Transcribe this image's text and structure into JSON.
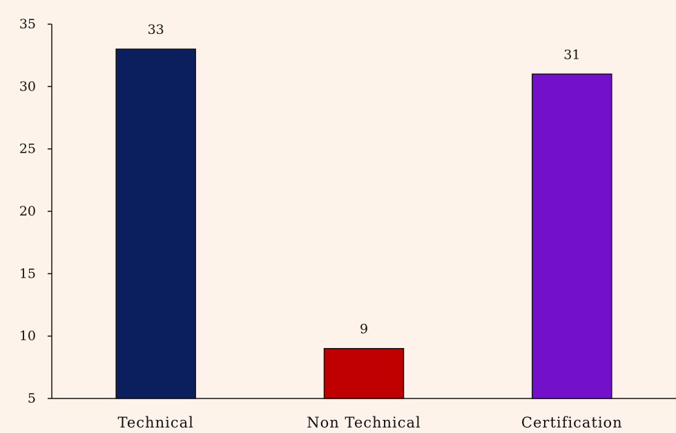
{
  "chart_data": {
    "type": "bar",
    "title": "",
    "xlabel": "",
    "ylabel": "",
    "categories": [
      "Technical",
      "Non Technical",
      "Certification"
    ],
    "values": [
      33,
      9,
      31
    ],
    "data_labels": [
      "33",
      "9",
      "31"
    ],
    "colors": [
      "#0b1f5e",
      "#c00000",
      "#7211c9"
    ],
    "ylim": [
      5,
      35
    ],
    "yticks": [
      5,
      10,
      15,
      20,
      25,
      30,
      35
    ],
    "grid": false,
    "legend": "none"
  }
}
